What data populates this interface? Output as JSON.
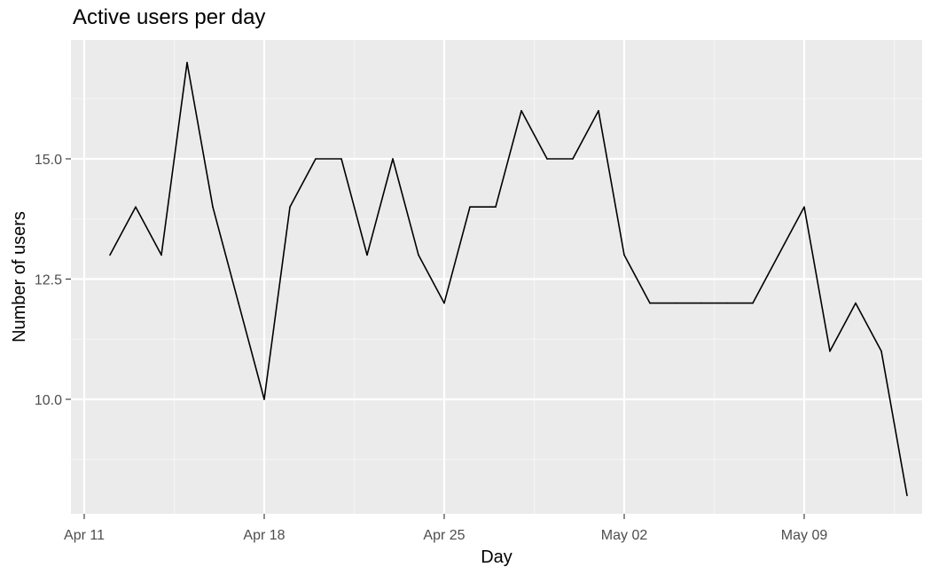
{
  "chart_data": {
    "type": "line",
    "title": "Active users per day",
    "xlabel": "Day",
    "ylabel": "Number of users",
    "x_ticks": [
      {
        "date": "2021-04-11",
        "label": "Apr 11"
      },
      {
        "date": "2021-04-18",
        "label": "Apr 18"
      },
      {
        "date": "2021-04-25",
        "label": "Apr 25"
      },
      {
        "date": "2021-05-02",
        "label": "May 02"
      },
      {
        "date": "2021-05-09",
        "label": "May 09"
      }
    ],
    "y_ticks": [
      {
        "value": 10.0,
        "label": "10.0"
      },
      {
        "value": 12.5,
        "label": "12.5"
      },
      {
        "value": 15.0,
        "label": "15.0"
      }
    ],
    "xlim": [
      "2021-04-10",
      "2021-05-12"
    ],
    "ylim": [
      7.9,
      17.75
    ],
    "grid": true,
    "series": [
      {
        "color": "#000000",
        "points": [
          {
            "x": "2021-04-12",
            "y": 13
          },
          {
            "x": "2021-04-13",
            "y": 14
          },
          {
            "x": "2021-04-14",
            "y": 13
          },
          {
            "x": "2021-04-15",
            "y": 17
          },
          {
            "x": "2021-04-16",
            "y": 14
          },
          {
            "x": "2021-04-17",
            "y": 12
          },
          {
            "x": "2021-04-18",
            "y": 10
          },
          {
            "x": "2021-04-19",
            "y": 14
          },
          {
            "x": "2021-04-20",
            "y": 15
          },
          {
            "x": "2021-04-21",
            "y": 15
          },
          {
            "x": "2021-04-22",
            "y": 13
          },
          {
            "x": "2021-04-23",
            "y": 15
          },
          {
            "x": "2021-04-24",
            "y": 13
          },
          {
            "x": "2021-04-25",
            "y": 12
          },
          {
            "x": "2021-04-26",
            "y": 14
          },
          {
            "x": "2021-04-27",
            "y": 14
          },
          {
            "x": "2021-04-28",
            "y": 16
          },
          {
            "x": "2021-04-29",
            "y": 15
          },
          {
            "x": "2021-04-30",
            "y": 15
          },
          {
            "x": "2021-05-01",
            "y": 16
          },
          {
            "x": "2021-05-02",
            "y": 13
          },
          {
            "x": "2021-05-03",
            "y": 12
          },
          {
            "x": "2021-05-04",
            "y": 12
          },
          {
            "x": "2021-05-05",
            "y": 12
          },
          {
            "x": "2021-05-06",
            "y": 12
          },
          {
            "x": "2021-05-07",
            "y": 12
          },
          {
            "x": "2021-05-08",
            "y": 13
          },
          {
            "x": "2021-05-09",
            "y": 14
          },
          {
            "x": "2021-05-10",
            "y": 11
          },
          {
            "x": "2021-05-11",
            "y": 12
          },
          {
            "x": "2021-05-12",
            "y": 11
          },
          {
            "x": "2021-05-13",
            "y": 8
          }
        ]
      }
    ],
    "colors": {
      "panel_background": "#ebebeb",
      "grid_major": "#ffffff",
      "grid_minor": "#f5f5f5",
      "tick_text": "#4d4d4d",
      "axis_ticks": "#333333"
    }
  }
}
